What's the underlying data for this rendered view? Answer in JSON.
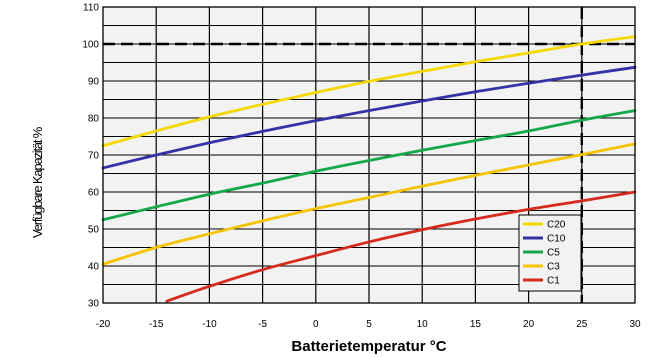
{
  "chart_data": {
    "type": "line",
    "title": "",
    "xlabel": "Batterietemperatur °C",
    "ylabel": "Verfügbare Kapazität %",
    "xlim": [
      -20,
      30
    ],
    "ylim": [
      30,
      110
    ],
    "xticks": [
      "-20",
      "-15",
      "-10",
      "-5",
      "0",
      "5",
      "10",
      "15",
      "20",
      "25",
      "30"
    ],
    "yticks": [
      "30",
      "40",
      "50",
      "60",
      "70",
      "80",
      "90",
      "100",
      "110"
    ],
    "grid": true,
    "legend_position": "bottom-right",
    "reference_lines": [
      {
        "axis": "y",
        "value": 100,
        "style": "dashed"
      },
      {
        "axis": "x",
        "value": 25,
        "style": "dashed"
      }
    ],
    "series": [
      {
        "name": "C20",
        "color": "#f5d800",
        "x": [
          -20,
          -15,
          -10,
          -5,
          0,
          5,
          10,
          15,
          20,
          25,
          30
        ],
        "y": [
          72.5,
          76.5,
          80.3,
          83.7,
          86.9,
          89.9,
          92.6,
          95.2,
          97.6,
          100,
          102
        ]
      },
      {
        "name": "C10",
        "color": "#3333a8",
        "x": [
          -20,
          -15,
          -10,
          -5,
          0,
          5,
          10,
          15,
          20,
          25,
          30
        ],
        "y": [
          66.5,
          70,
          73.3,
          76.4,
          79.3,
          82,
          84.6,
          87.1,
          89.4,
          91.6,
          93.7
        ]
      },
      {
        "name": "C5",
        "color": "#14a84a",
        "x": [
          -20,
          -15,
          -10,
          -5,
          0,
          5,
          10,
          15,
          20,
          25,
          30
        ],
        "y": [
          52.5,
          56,
          59.4,
          62.4,
          65.6,
          68.5,
          71.3,
          73.9,
          76.5,
          79.4,
          82
        ]
      },
      {
        "name": "C3",
        "color": "#f5c400",
        "x": [
          -20,
          -15,
          -10,
          -5,
          0,
          5,
          10,
          15,
          20,
          25,
          30
        ],
        "y": [
          40.5,
          45,
          48.7,
          52.2,
          55.5,
          58.5,
          61.6,
          64.5,
          67.3,
          70.1,
          73
        ]
      },
      {
        "name": "C1",
        "color": "#d62a1e",
        "x": [
          -14,
          -10,
          -5,
          0,
          5,
          10,
          15,
          20,
          25,
          30
        ],
        "y": [
          30.5,
          34.5,
          39,
          42.8,
          46.5,
          49.8,
          52.7,
          55.3,
          57.6,
          60
        ]
      }
    ]
  }
}
